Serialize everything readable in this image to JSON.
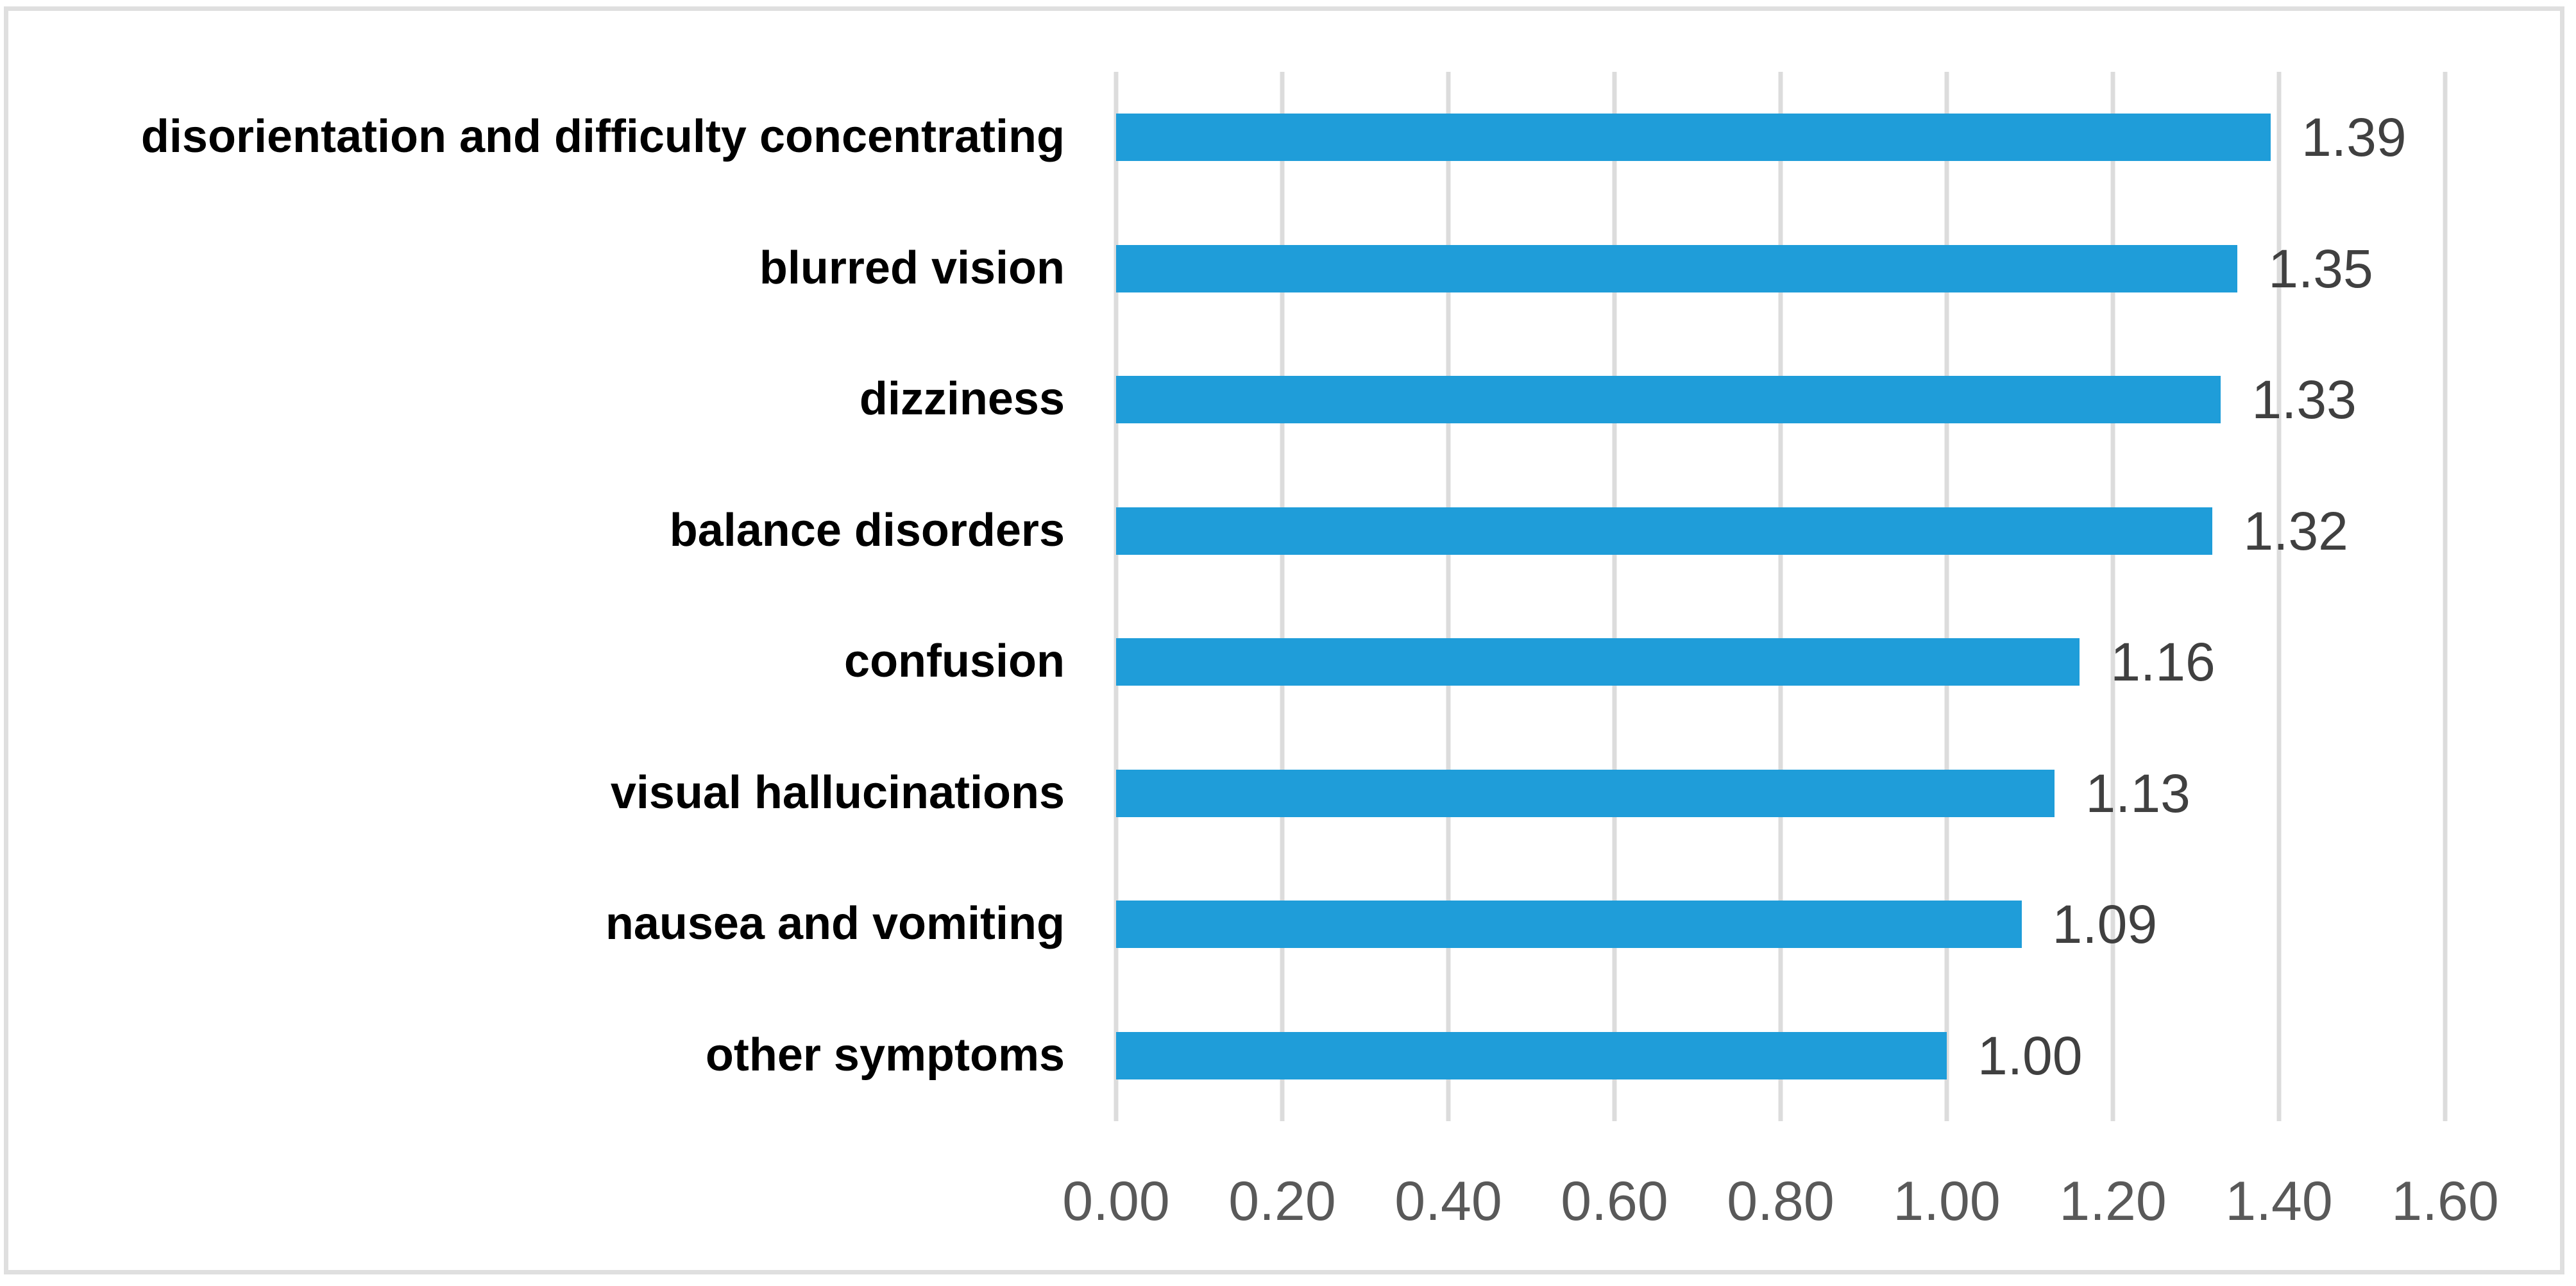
{
  "chart_data": {
    "type": "bar",
    "orientation": "horizontal",
    "title": "",
    "xlabel": "",
    "ylabel": "",
    "categories": [
      "disorientation and difficulty concentrating",
      "blurred vision",
      "dizziness",
      "balance disorders",
      "confusion",
      "visual hallucinations",
      "nausea and vomiting",
      "other symptoms"
    ],
    "values": [
      1.39,
      1.35,
      1.33,
      1.32,
      1.16,
      1.13,
      1.09,
      1.0
    ],
    "value_labels": [
      "1.39",
      "1.35",
      "1.33",
      "1.32",
      "1.16",
      "1.13",
      "1.09",
      "1.00"
    ],
    "x_ticks": [
      "0.00",
      "0.20",
      "0.40",
      "0.60",
      "0.80",
      "1.00",
      "1.20",
      "1.40",
      "1.60"
    ],
    "xlim": [
      0,
      1.6
    ],
    "grid": "vertical-only",
    "legend_position": "none",
    "colors": {
      "bar": "#1f9dd9",
      "gridline": "#dcdcdc",
      "frame_border": "#dfdfdf",
      "category_label": "#000000",
      "value_label": "#404040",
      "tick_label": "#595959",
      "background": "#ffffff"
    }
  }
}
